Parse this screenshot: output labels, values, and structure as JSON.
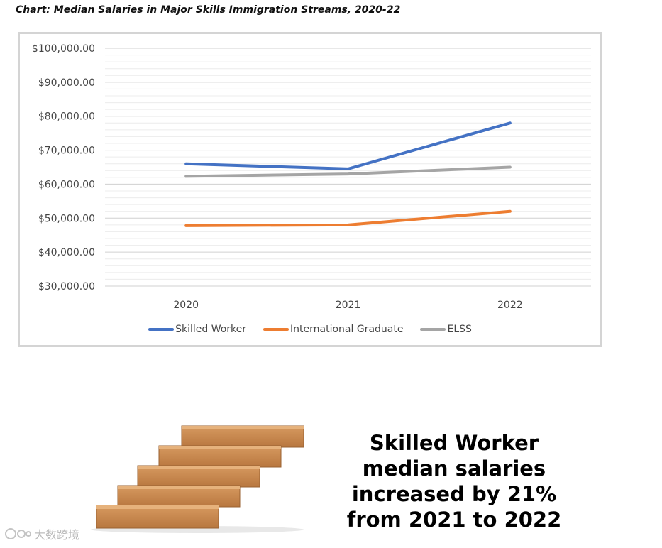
{
  "caption": "Chart: Median Salaries in Major Skills Immigration Streams, 2020-22",
  "headline": {
    "lines": [
      "Skilled Worker",
      "median salaries",
      "increased by 21%",
      "from 2021 to 2022"
    ]
  },
  "watermark": {
    "text": "大数跨境"
  },
  "colors": {
    "skilled_worker": "#4472C4",
    "international_graduate": "#ED7D31",
    "elss": "#A5A5A5"
  },
  "chart_data": {
    "type": "line",
    "title": "",
    "xlabel": "",
    "ylabel": "",
    "x": [
      "2020",
      "2021",
      "2022"
    ],
    "ylim": [
      30000,
      100000
    ],
    "yticks": [
      100000,
      90000,
      80000,
      70000,
      60000,
      50000,
      40000,
      30000
    ],
    "ytick_labels": [
      "$100,000.00",
      "$90,000.00",
      "$80,000.00",
      "$70,000.00",
      "$60,000.00",
      "$50,000.00",
      "$40,000.00",
      "$30,000.00"
    ],
    "grid": true,
    "legend_position": "bottom",
    "series": [
      {
        "name": "Skilled Worker",
        "color": "#4472C4",
        "values": [
          66000,
          64500,
          78000
        ]
      },
      {
        "name": "International Graduate",
        "color": "#ED7D31",
        "values": [
          47800,
          48000,
          52000
        ]
      },
      {
        "name": "ELSS",
        "color": "#A5A5A5",
        "values": [
          62300,
          63000,
          65000
        ]
      }
    ]
  }
}
